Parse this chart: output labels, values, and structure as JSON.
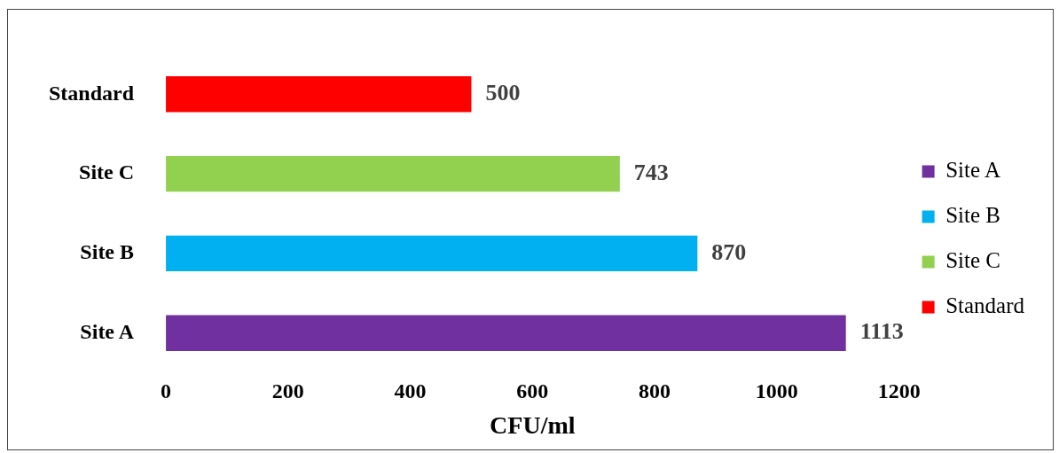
{
  "chart_data": {
    "type": "bar",
    "orientation": "horizontal",
    "xlabel": "CFU/ml",
    "categories": [
      "Standard",
      "Site C",
      "Site B",
      "Site A"
    ],
    "series": [
      {
        "name": "Site A",
        "color": "#7030a0",
        "values": [
          null,
          null,
          null,
          1113
        ]
      },
      {
        "name": "Site B",
        "color": "#00b0f0",
        "values": [
          null,
          null,
          870,
          null
        ]
      },
      {
        "name": "Site C",
        "color": "#92d050",
        "values": [
          null,
          743,
          null,
          null
        ]
      },
      {
        "name": "Standard",
        "color": "#ff0000",
        "values": [
          500,
          null,
          null,
          null
        ]
      }
    ],
    "xlim": [
      0,
      1200
    ],
    "xticks": [
      0,
      200,
      400,
      600,
      800,
      1000,
      1200
    ],
    "grid": false,
    "legend": "right",
    "data_labels": true
  }
}
